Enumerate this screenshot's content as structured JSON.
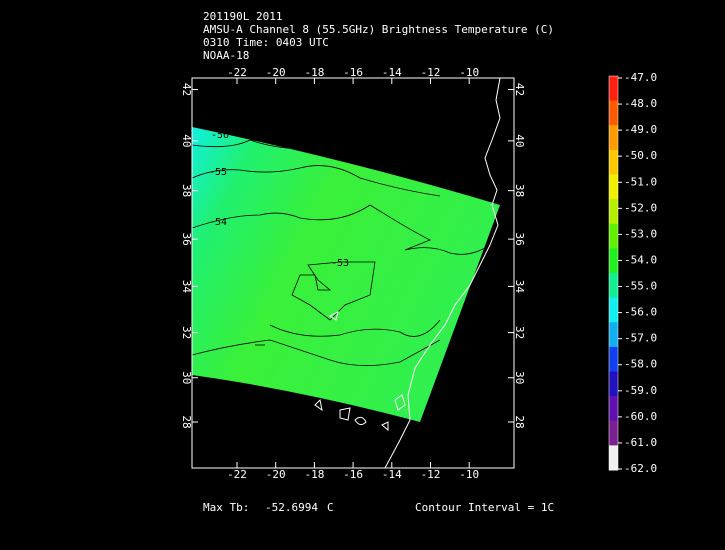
{
  "header": {
    "lines": [
      "201190L 2011",
      "AMSU-A Channel 8 (55.5GHz) Brightness Temperature (C)",
      "0310 Time: 0403 UTC",
      "NOAA-18"
    ]
  },
  "map": {
    "lon_ticks": [
      -22,
      -20,
      -18,
      -16,
      -14,
      -12,
      -10
    ],
    "lat_ticks": [
      42,
      40,
      38,
      36,
      34,
      32,
      30,
      28
    ],
    "contour_labels": [
      "-56",
      "-55",
      "-54",
      "-53"
    ]
  },
  "colorbar": {
    "labels": [
      "-47.0",
      "-48.0",
      "-49.0",
      "-50.0",
      "-51.0",
      "-52.0",
      "-53.0",
      "-54.0",
      "-55.0",
      "-56.0",
      "-57.0",
      "-58.0",
      "-59.0",
      "-60.0",
      "-61.0",
      "-62.0"
    ],
    "colors": [
      "#ff2010",
      "#ff5a00",
      "#ff9a00",
      "#ffc800",
      "#f0f000",
      "#b4f000",
      "#60f000",
      "#20f020",
      "#10f090",
      "#10f0f0",
      "#10b0f0",
      "#1040f0",
      "#2010c0",
      "#6010b0",
      "#7a2090",
      "#f0f0f0"
    ]
  },
  "footer": {
    "max_label": "Max Tb:",
    "max_value": "-52.6994",
    "unit": "C",
    "contour_interval": "Contour Interval = 1C"
  }
}
